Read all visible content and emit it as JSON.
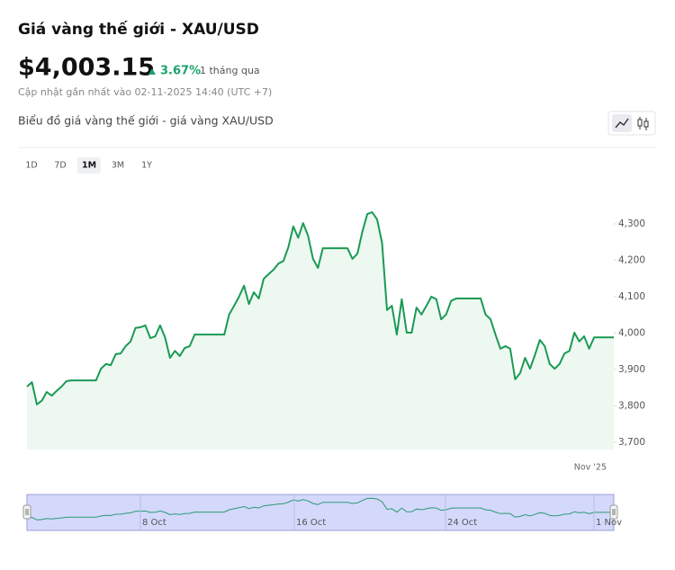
{
  "header": {
    "title": "Giá vàng thế giới - XAU/USD",
    "price": "$4,003.15",
    "change": "3.67%",
    "period": "1 tháng qua",
    "updated": "Cập nhật gần nhất vào 02-11-2025 14:40 (UTC +7)"
  },
  "chart_section": {
    "title": "Biểu đồ giá vàng thế giới - giá vàng XAU/USD",
    "ranges": [
      "1D",
      "7D",
      "1M",
      "3M",
      "1Y"
    ],
    "selected_range": 2
  },
  "chart_data": {
    "type": "line",
    "series": [
      {
        "color": "#1a9a55",
        "fill": "#edf8f1",
        "values": [
          3853,
          3865,
          3804,
          3814,
          3838,
          3828,
          3841,
          3853,
          3868,
          3870,
          3870,
          3870,
          3870,
          3870,
          3870,
          3902,
          3915,
          3912,
          3942,
          3944,
          3964,
          3977,
          4014,
          4016,
          4021,
          3986,
          3991,
          4021,
          3988,
          3932,
          3951,
          3937,
          3959,
          3964,
          3996,
          3996,
          3996,
          3996,
          3996,
          3996,
          3996,
          4051,
          4075,
          4100,
          4130,
          4080,
          4112,
          4095,
          4149,
          4162,
          4174,
          4191,
          4198,
          4236,
          4293,
          4262,
          4302,
          4267,
          4204,
          4179,
          4233,
          4233,
          4233,
          4233,
          4233,
          4233,
          4204,
          4218,
          4278,
          4327,
          4332,
          4312,
          4248,
          4063,
          4075,
          3996,
          4093,
          4001,
          4001,
          4070,
          4051,
          4075,
          4100,
          4093,
          4038,
          4051,
          4088,
          4095,
          4095,
          4095,
          4095,
          4095,
          4095,
          4051,
          4038,
          3996,
          3957,
          3964,
          3957,
          3873,
          3890,
          3932,
          3902,
          3939,
          3981,
          3964,
          3915,
          3902,
          3915,
          3944,
          3951,
          4001,
          3977,
          3991,
          3957,
          3988,
          3988,
          3988,
          3988,
          3988
        ]
      }
    ],
    "ylim": [
      3680,
      4380
    ],
    "yticks": [
      {
        "value": 3700,
        "label": "3,700"
      },
      {
        "value": 3800,
        "label": "3,800"
      },
      {
        "value": 3900,
        "label": "3,900"
      },
      {
        "value": 4000,
        "label": "4,000"
      },
      {
        "value": 4100,
        "label": "4,100"
      },
      {
        "value": 4200,
        "label": "4,200"
      },
      {
        "value": 4300,
        "label": "4,300"
      }
    ],
    "x_label": "Nov '25",
    "navigator": {
      "labels": [
        "8 Oct",
        "16 Oct",
        "24 Oct",
        "1 Nov"
      ]
    }
  }
}
